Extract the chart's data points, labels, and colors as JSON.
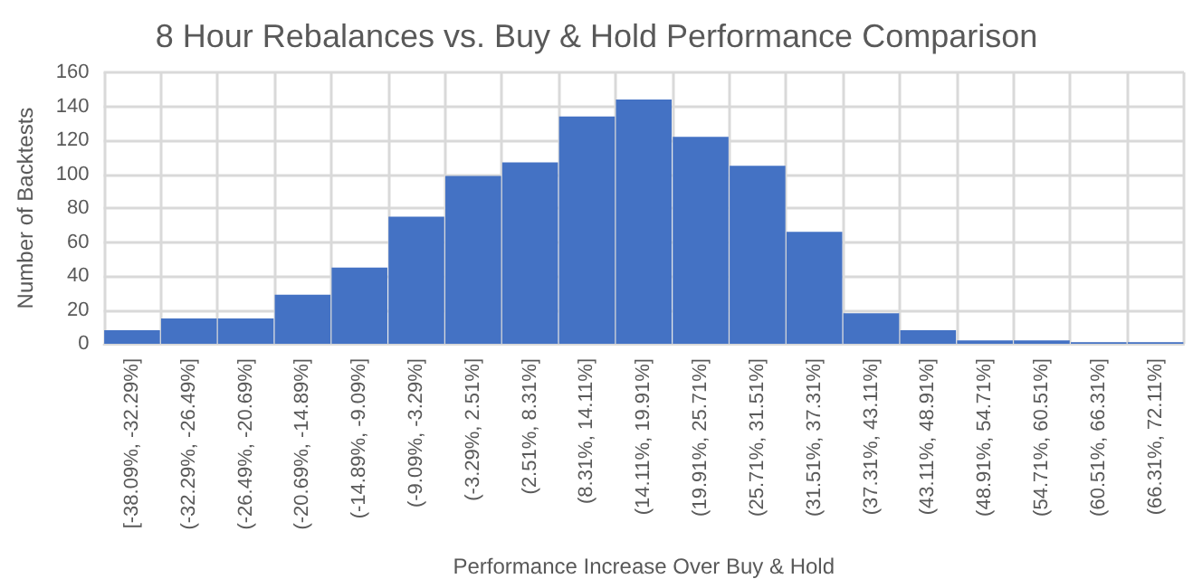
{
  "chart_data": {
    "type": "bar",
    "title": "8 Hour Rebalances vs. Buy & Hold Performance Comparison",
    "xlabel": "Performance Increase Over Buy & Hold",
    "ylabel": "Number of Backtests",
    "categories": [
      "[-38.09%, -32.29%]",
      "(-32.29%, -26.49%]",
      "(-26.49%, -20.69%]",
      "(-20.69%, -14.89%]",
      "(-14.89%, -9.09%]",
      "(-9.09%, -3.29%]",
      "(-3.29%, 2.51%]",
      "(2.51%, 8.31%]",
      "(8.31%, 14.11%]",
      "(14.11%, 19.91%]",
      "(19.91%, 25.71%]",
      "(25.71%, 31.51%]",
      "(31.51%, 37.31%]",
      "(37.31%, 43.11%]",
      "(43.11%, 48.91%]",
      "(48.91%, 54.71%]",
      "(54.71%, 60.51%]",
      "(60.51%, 66.31%]",
      "(66.31%, 72.11%]"
    ],
    "values": [
      8,
      15,
      15,
      29,
      45,
      75,
      99,
      107,
      134,
      144,
      122,
      105,
      66,
      18,
      8,
      2,
      2,
      1,
      1
    ],
    "color": "#4472c4",
    "ylim": [
      0,
      160
    ],
    "yticks": [
      0,
      20,
      40,
      60,
      80,
      100,
      120,
      140,
      160
    ],
    "grid": true
  }
}
